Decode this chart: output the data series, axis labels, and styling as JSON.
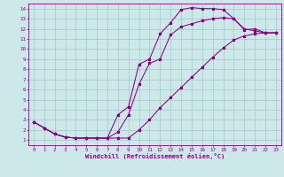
{
  "xlabel": "Windchill (Refroidissement éolien,°C)",
  "bg_color": "#cce8e8",
  "grid_color": "#aacccc",
  "line_color": "#880088",
  "xlim": [
    -0.5,
    23.5
  ],
  "ylim": [
    0.5,
    14.5
  ],
  "xticks": [
    0,
    1,
    2,
    3,
    4,
    5,
    6,
    7,
    8,
    9,
    10,
    11,
    12,
    13,
    14,
    15,
    16,
    17,
    18,
    19,
    20,
    21,
    22,
    23
  ],
  "yticks": [
    1,
    2,
    3,
    4,
    5,
    6,
    7,
    8,
    9,
    10,
    11,
    12,
    13,
    14
  ],
  "curve1_x": [
    0,
    1,
    2,
    3,
    4,
    5,
    6,
    7,
    8,
    9,
    10,
    11,
    12,
    13,
    14,
    15,
    16,
    17,
    18,
    19,
    20,
    21,
    22,
    23
  ],
  "curve1_y": [
    2.8,
    2.2,
    1.6,
    1.3,
    1.2,
    1.2,
    1.2,
    1.2,
    3.5,
    4.3,
    8.5,
    9.0,
    11.5,
    12.6,
    13.9,
    14.1,
    14.0,
    14.0,
    13.9,
    13.0,
    11.9,
    12.0,
    11.6,
    11.6
  ],
  "curve2_x": [
    0,
    1,
    2,
    3,
    4,
    5,
    6,
    7,
    8,
    9,
    10,
    11,
    12,
    13,
    14,
    15,
    16,
    17,
    18,
    19,
    20,
    21,
    22,
    23
  ],
  "curve2_y": [
    2.8,
    2.2,
    1.6,
    1.3,
    1.2,
    1.2,
    1.2,
    1.2,
    1.8,
    3.5,
    6.5,
    8.6,
    9.0,
    11.4,
    12.2,
    12.5,
    12.8,
    13.0,
    13.1,
    13.0,
    12.0,
    11.8,
    11.6,
    11.6
  ],
  "curve3_x": [
    0,
    1,
    2,
    3,
    4,
    5,
    6,
    7,
    8,
    9,
    10,
    11,
    12,
    13,
    14,
    15,
    16,
    17,
    18,
    19,
    20,
    21,
    22,
    23
  ],
  "curve3_y": [
    2.8,
    2.2,
    1.6,
    1.3,
    1.2,
    1.2,
    1.2,
    1.2,
    1.2,
    1.2,
    2.0,
    3.0,
    4.2,
    5.2,
    6.2,
    7.2,
    8.2,
    9.2,
    10.1,
    10.9,
    11.3,
    11.5,
    11.6,
    11.6
  ]
}
